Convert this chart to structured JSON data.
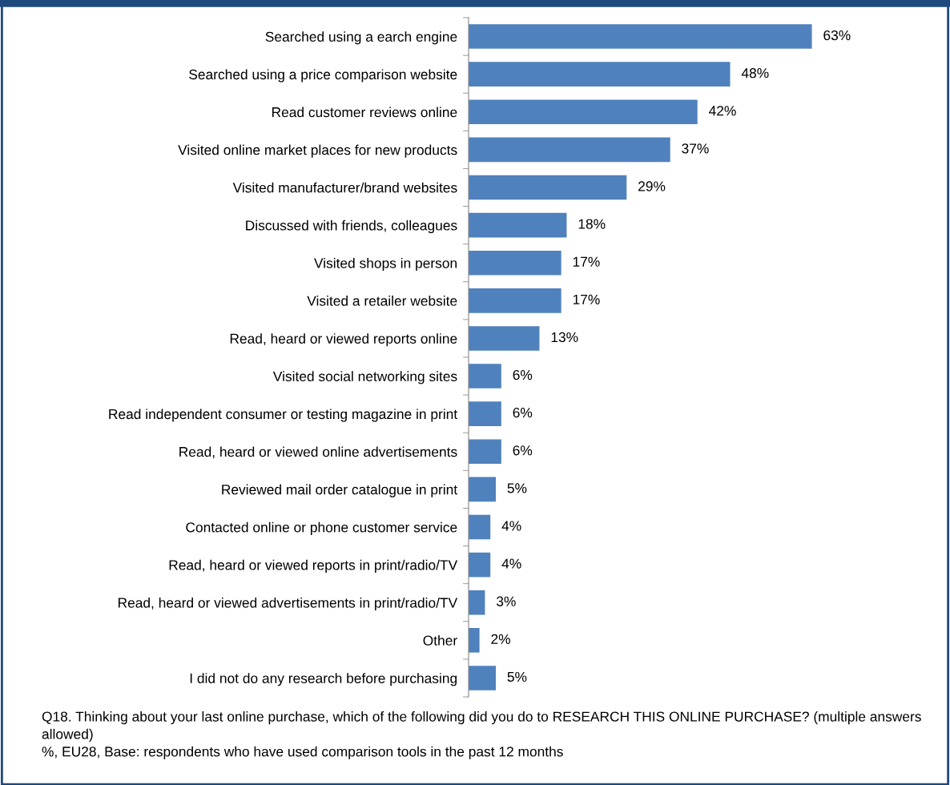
{
  "chart_data": {
    "type": "bar",
    "orientation": "horizontal",
    "categories": [
      "Searched using a earch engine",
      "Searched using a price comparison website",
      "Read customer reviews online",
      "Visited online market places for new products",
      "Visited manufacturer/brand websites",
      "Discussed with friends, colleagues",
      "Visited shops in person",
      "Visited a retailer website",
      "Read, heard or viewed reports online",
      "Visited social networking sites",
      "Read independent consumer or testing magazine in print",
      "Read, heard or viewed online advertisements",
      "Reviewed mail order catalogue in print",
      "Contacted online or phone customer service",
      "Read, heard or viewed reports in print/radio/TV",
      "Read, heard or viewed advertisements in print/radio/TV",
      "Other",
      "I did not do any research before purchasing"
    ],
    "values": [
      63,
      48,
      42,
      37,
      29,
      18,
      17,
      17,
      13,
      6,
      6,
      6,
      5,
      4,
      4,
      3,
      2,
      5
    ],
    "value_labels": [
      "63%",
      "48%",
      "42%",
      "37%",
      "29%",
      "18%",
      "17%",
      "17%",
      "13%",
      "6%",
      "6%",
      "6%",
      "5%",
      "4%",
      "4%",
      "3%",
      "2%",
      "5%"
    ],
    "color": "#4f81bd",
    "grid": false,
    "legend": false,
    "tick_labels": "y",
    "annotations": [
      "Q18. Thinking about your last online purchase, which of the following did you do to RESEARCH THIS ONLINE PURCHASE? (multiple answers allowed)",
      "%, EU28, Base: respondents who have used comparison tools in the past 12 months"
    ]
  }
}
